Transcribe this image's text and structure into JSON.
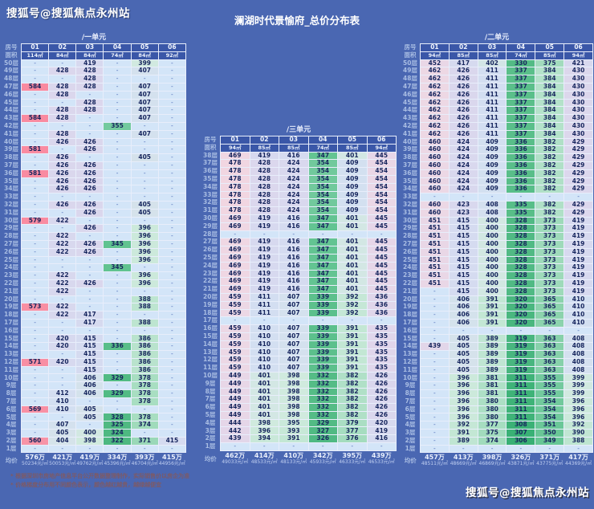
{
  "page": {
    "watermark_top": "搜狐号@搜狐焦点永州站",
    "watermark_bottom": "搜狐号@搜狐焦点永州站",
    "title": "澜湖时代景愉府_总价分布表",
    "footnotes": [
      "* 根据深圳市房地产信息平台公开数据整理制作，实际销售价以房企为准",
      "* 价格梯度分布用不同颜色表示，颜色越红越贵，越绿越便宜"
    ],
    "colors": {
      "background": "#4a67b2",
      "table_header": "#3a57a8",
      "expensive_max": "#f98aa0",
      "cheap_min": "#38b074",
      "neutral_mid": "#d9daf0",
      "empty_cell": "#d3e5f8"
    }
  },
  "labels": {
    "room": "房号",
    "area": "面积",
    "floor_suffix": "层",
    "avg": "均价",
    "dash": "-"
  },
  "chart_data": [
    {
      "type": "heatmap-table",
      "name": "/一单元",
      "columns": [
        "01",
        "02",
        "03",
        "04",
        "05",
        "06"
      ],
      "areas": [
        "114㎡",
        "84㎡",
        "84㎡",
        "74㎡",
        "84㎡",
        "92㎡"
      ],
      "top_floor": 50,
      "floors": [
        [
          "-",
          "-",
          419,
          "-",
          399,
          "-"
        ],
        [
          "-",
          428,
          428,
          "-",
          407,
          "-"
        ],
        [
          "-",
          "-",
          428,
          "-",
          "-",
          "-"
        ],
        [
          584,
          428,
          428,
          "-",
          407,
          "-"
        ],
        [
          "-",
          428,
          "-",
          "-",
          407,
          "-"
        ],
        [
          "-",
          "-",
          428,
          "-",
          407,
          "-"
        ],
        [
          "-",
          428,
          428,
          "-",
          407,
          "-"
        ],
        [
          584,
          428,
          "-",
          "-",
          407,
          "-"
        ],
        [
          "-",
          "-",
          "-",
          355,
          "-",
          "-"
        ],
        [
          "-",
          428,
          "-",
          "-",
          407,
          "-"
        ],
        [
          "-",
          426,
          426,
          "-",
          "-",
          "-"
        ],
        [
          581,
          "-",
          426,
          "-",
          "-",
          "-"
        ],
        [
          "-",
          426,
          "-",
          "-",
          405,
          "-"
        ],
        [
          "-",
          426,
          426,
          "-",
          "-",
          "-"
        ],
        [
          581,
          426,
          426,
          "-",
          "-",
          "-"
        ],
        [
          "-",
          426,
          426,
          "-",
          "-",
          "-"
        ],
        [
          "-",
          426,
          426,
          "-",
          "-",
          "-"
        ],
        [
          "-",
          "-",
          "-",
          "-",
          "-",
          "-"
        ],
        [
          "-",
          426,
          426,
          "-",
          405,
          "-"
        ],
        [
          "-",
          "-",
          426,
          "-",
          405,
          "-"
        ],
        [
          579,
          422,
          "-",
          "-",
          "-",
          "-"
        ],
        [
          "-",
          "-",
          426,
          "-",
          396,
          "-"
        ],
        [
          "-",
          422,
          "-",
          "-",
          396,
          "-"
        ],
        [
          "-",
          422,
          426,
          345,
          396,
          "-"
        ],
        [
          "-",
          422,
          426,
          "-",
          396,
          "-"
        ],
        [
          "-",
          "-",
          "-",
          "-",
          396,
          "-"
        ],
        [
          "-",
          "-",
          "-",
          345,
          "-",
          "-"
        ],
        [
          "-",
          422,
          "-",
          "-",
          396,
          "-"
        ],
        [
          "-",
          422,
          426,
          "-",
          396,
          "-"
        ],
        [
          "-",
          422,
          "-",
          "-",
          "-",
          "-"
        ],
        [
          "-",
          "-",
          "-",
          "-",
          388,
          "-"
        ],
        [
          573,
          422,
          "-",
          "-",
          388,
          "-"
        ],
        [
          "-",
          422,
          417,
          "-",
          "-",
          "-"
        ],
        [
          "-",
          "-",
          417,
          "-",
          388,
          "-"
        ],
        [
          "-",
          "-",
          "-",
          "-",
          "-",
          "-"
        ],
        [
          "-",
          420,
          415,
          "-",
          386,
          "-"
        ],
        [
          "-",
          420,
          415,
          336,
          386,
          "-"
        ],
        [
          "-",
          "-",
          415,
          "-",
          386,
          "-"
        ],
        [
          571,
          420,
          415,
          "-",
          386,
          "-"
        ],
        [
          "-",
          "-",
          415,
          "-",
          386,
          "-"
        ],
        [
          "-",
          "-",
          406,
          329,
          378,
          "-"
        ],
        [
          "-",
          "-",
          406,
          "-",
          378,
          "-"
        ],
        [
          "-",
          412,
          406,
          329,
          378,
          "-"
        ],
        [
          "-",
          410,
          "-",
          "-",
          378,
          "-"
        ],
        [
          569,
          410,
          405,
          "-",
          "-",
          "-"
        ],
        [
          "-",
          "-",
          405,
          328,
          378,
          "-"
        ],
        [
          "-",
          407,
          "-",
          325,
          374,
          "-"
        ],
        [
          "-",
          405,
          400,
          324,
          "-",
          "-"
        ],
        [
          560,
          404,
          398,
          322,
          371,
          415
        ],
        [
          "-",
          "-",
          "-",
          "-",
          "-",
          "-"
        ]
      ],
      "avg": [
        {
          "total": "576万",
          "unit_price": "50234元/㎡"
        },
        {
          "total": "421万",
          "unit_price": "50053元/㎡"
        },
        {
          "total": "419万",
          "unit_price": "49762元/㎡"
        },
        {
          "total": "334万",
          "unit_price": "45396元/㎡"
        },
        {
          "total": "393万",
          "unit_price": "46704元/㎡"
        },
        {
          "total": "415万",
          "unit_price": "44956元/㎡"
        }
      ]
    },
    {
      "type": "heatmap-table",
      "name": "/二单元",
      "columns": [
        "01",
        "02",
        "03",
        "04",
        "05",
        "06"
      ],
      "areas": [
        "94㎡",
        "85㎡",
        "85㎡",
        "74㎡",
        "85㎡",
        "94㎡"
      ],
      "top_floor": 50,
      "floors": [
        [
          452,
          417,
          402,
          330,
          375,
          421
        ],
        [
          462,
          426,
          411,
          337,
          384,
          430
        ],
        [
          462,
          426,
          411,
          337,
          384,
          430
        ],
        [
          462,
          426,
          411,
          337,
          384,
          430
        ],
        [
          462,
          426,
          411,
          337,
          384,
          430
        ],
        [
          462,
          426,
          411,
          337,
          384,
          430
        ],
        [
          462,
          426,
          411,
          337,
          384,
          430
        ],
        [
          462,
          426,
          411,
          337,
          384,
          430
        ],
        [
          462,
          426,
          411,
          337,
          384,
          430
        ],
        [
          462,
          426,
          411,
          337,
          384,
          430
        ],
        [
          460,
          424,
          409,
          336,
          382,
          429
        ],
        [
          460,
          424,
          409,
          336,
          382,
          429
        ],
        [
          460,
          424,
          409,
          336,
          382,
          429
        ],
        [
          460,
          424,
          409,
          336,
          382,
          429
        ],
        [
          460,
          424,
          409,
          336,
          382,
          429
        ],
        [
          460,
          424,
          409,
          336,
          382,
          429
        ],
        [
          460,
          424,
          409,
          336,
          382,
          429
        ],
        [
          "-",
          "-",
          "-",
          "-",
          "-",
          "-"
        ],
        [
          460,
          423,
          408,
          335,
          382,
          429
        ],
        [
          460,
          423,
          408,
          335,
          382,
          429
        ],
        [
          451,
          415,
          400,
          328,
          373,
          419
        ],
        [
          451,
          415,
          400,
          328,
          373,
          419
        ],
        [
          451,
          415,
          400,
          328,
          373,
          419
        ],
        [
          451,
          415,
          400,
          328,
          373,
          419
        ],
        [
          451,
          415,
          400,
          328,
          373,
          419
        ],
        [
          451,
          415,
          400,
          328,
          373,
          419
        ],
        [
          451,
          415,
          400,
          328,
          373,
          419
        ],
        [
          451,
          415,
          400,
          328,
          373,
          419
        ],
        [
          451,
          415,
          400,
          328,
          373,
          419
        ],
        [
          "-",
          415,
          400,
          328,
          373,
          419
        ],
        [
          "-",
          406,
          391,
          320,
          365,
          410
        ],
        [
          "-",
          406,
          391,
          320,
          365,
          410
        ],
        [
          "-",
          406,
          391,
          320,
          365,
          410
        ],
        [
          "-",
          406,
          391,
          320,
          365,
          410
        ],
        [
          "-",
          "-",
          "-",
          "-",
          "-",
          "-"
        ],
        [
          "-",
          405,
          389,
          319,
          363,
          408
        ],
        [
          439,
          405,
          389,
          319,
          363,
          408
        ],
        [
          "-",
          405,
          389,
          319,
          363,
          408
        ],
        [
          "-",
          405,
          389,
          319,
          363,
          408
        ],
        [
          "-",
          405,
          389,
          319,
          363,
          408
        ],
        [
          "-",
          396,
          381,
          311,
          355,
          399
        ],
        [
          "-",
          396,
          381,
          311,
          355,
          399
        ],
        [
          "-",
          396,
          381,
          311,
          355,
          399
        ],
        [
          "-",
          396,
          380,
          311,
          354,
          396
        ],
        [
          "-",
          396,
          380,
          311,
          354,
          396
        ],
        [
          "-",
          396,
          380,
          311,
          354,
          396
        ],
        [
          "-",
          392,
          377,
          308,
          351,
          392
        ],
        [
          "-",
          391,
          375,
          307,
          350,
          390
        ],
        [
          "-",
          389,
          374,
          306,
          349,
          388
        ],
        [
          "-",
          "-",
          "-",
          "-",
          "-",
          "-"
        ]
      ],
      "avg": [
        {
          "total": "457万",
          "unit_price": "48511元/㎡"
        },
        {
          "total": "413万",
          "unit_price": "48669元/㎡"
        },
        {
          "total": "398万",
          "unit_price": "46869元/㎡"
        },
        {
          "total": "326万",
          "unit_price": "43871元/㎡"
        },
        {
          "total": "371万",
          "unit_price": "43775元/㎡"
        },
        {
          "total": "417万",
          "unit_price": "44369元/㎡"
        }
      ]
    },
    {
      "type": "heatmap-table",
      "name": "/三单元",
      "columns": [
        "01",
        "02",
        "03",
        "04",
        "05",
        "06"
      ],
      "areas": [
        "94㎡",
        "85㎡",
        "85㎡",
        "74㎡",
        "85㎡",
        "94㎡"
      ],
      "top_floor": 38,
      "floors": [
        [
          469,
          419,
          416,
          347,
          401,
          445
        ],
        [
          478,
          428,
          424,
          354,
          409,
          454
        ],
        [
          478,
          428,
          424,
          354,
          409,
          454
        ],
        [
          478,
          428,
          424,
          354,
          409,
          454
        ],
        [
          478,
          428,
          424,
          354,
          409,
          454
        ],
        [
          478,
          428,
          424,
          354,
          409,
          454
        ],
        [
          478,
          428,
          424,
          354,
          409,
          454
        ],
        [
          478,
          428,
          424,
          354,
          409,
          454
        ],
        [
          469,
          419,
          416,
          347,
          401,
          445
        ],
        [
          469,
          419,
          416,
          347,
          401,
          445
        ],
        [
          "-",
          "-",
          "-",
          "-",
          "-",
          "-"
        ],
        [
          469,
          419,
          416,
          347,
          401,
          445
        ],
        [
          469,
          419,
          416,
          347,
          401,
          445
        ],
        [
          469,
          419,
          416,
          347,
          401,
          445
        ],
        [
          469,
          419,
          416,
          347,
          401,
          445
        ],
        [
          469,
          419,
          416,
          347,
          401,
          445
        ],
        [
          469,
          419,
          416,
          347,
          401,
          445
        ],
        [
          469,
          419,
          416,
          347,
          401,
          445
        ],
        [
          459,
          411,
          407,
          339,
          392,
          436
        ],
        [
          459,
          411,
          407,
          339,
          392,
          436
        ],
        [
          459,
          411,
          407,
          339,
          392,
          436
        ],
        [
          "-",
          "-",
          "-",
          "-",
          "-",
          "-"
        ],
        [
          459,
          410,
          407,
          339,
          391,
          435
        ],
        [
          459,
          410,
          407,
          339,
          391,
          435
        ],
        [
          459,
          410,
          407,
          339,
          391,
          435
        ],
        [
          459,
          410,
          407,
          339,
          391,
          435
        ],
        [
          459,
          410,
          407,
          339,
          391,
          435
        ],
        [
          459,
          410,
          407,
          339,
          391,
          435
        ],
        [
          449,
          401,
          398,
          332,
          382,
          426
        ],
        [
          449,
          401,
          398,
          332,
          382,
          426
        ],
        [
          449,
          401,
          398,
          332,
          382,
          426
        ],
        [
          449,
          401,
          398,
          332,
          382,
          426
        ],
        [
          449,
          401,
          398,
          332,
          382,
          426
        ],
        [
          449,
          401,
          398,
          332,
          382,
          426
        ],
        [
          444,
          398,
          395,
          329,
          379,
          420
        ],
        [
          442,
          396,
          393,
          327,
          377,
          419
        ],
        [
          439,
          394,
          391,
          326,
          376,
          416
        ],
        [
          "-",
          "-",
          "-",
          "-",
          "-",
          "-"
        ]
      ],
      "avg": [
        {
          "total": "462万",
          "unit_price": "49033元/㎡"
        },
        {
          "total": "414万",
          "unit_price": "48533元/㎡"
        },
        {
          "total": "410万",
          "unit_price": "48133元/㎡"
        },
        {
          "total": "342万",
          "unit_price": "45933元/㎡"
        },
        {
          "total": "395万",
          "unit_price": "46333元/㎡"
        },
        {
          "total": "439万",
          "unit_price": "46533元/㎡"
        }
      ]
    }
  ]
}
